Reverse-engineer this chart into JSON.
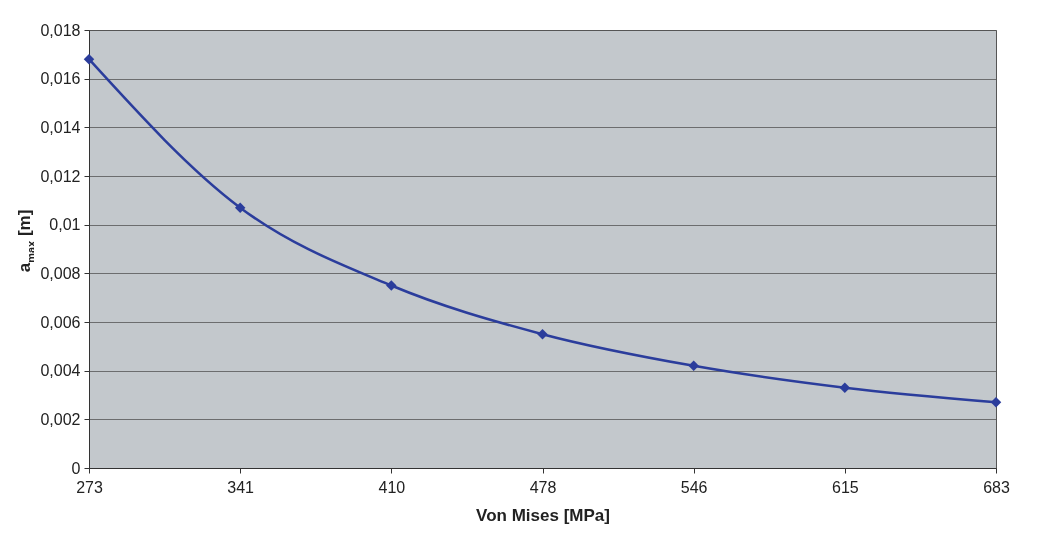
{
  "chart_data": {
    "type": "line",
    "xlabel": "Von Mises [MPa]",
    "ylabel": "a$_{max}$ [m]",
    "categories": [
      "273",
      "341",
      "410",
      "478",
      "546",
      "615",
      "683"
    ],
    "series": [
      {
        "color": "#2b3d9c",
        "values": [
          0.0168,
          0.0107,
          0.0075,
          0.0055,
          0.0042,
          0.0033,
          0.0027
        ]
      }
    ],
    "ylim": [
      0,
      0.018
    ],
    "yticks": [
      0,
      {
        "value": 0.002,
        "label": "0,002"
      },
      {
        "value": 0.004,
        "label": "0,004"
      },
      {
        "value": 0.006,
        "label": "0,006"
      },
      {
        "value": 0.008,
        "label": "0,008"
      },
      {
        "value": 0.01,
        "label": "0,01"
      },
      {
        "value": 0.012,
        "label": "0,012"
      },
      {
        "value": 0.014,
        "label": "0,014"
      },
      {
        "value": 0.016,
        "label": "0,016"
      },
      {
        "value": 0.018,
        "label": "0,018"
      }
    ],
    "grid": "y",
    "marker": "diamond",
    "line_style": "solid",
    "legend": false
  }
}
